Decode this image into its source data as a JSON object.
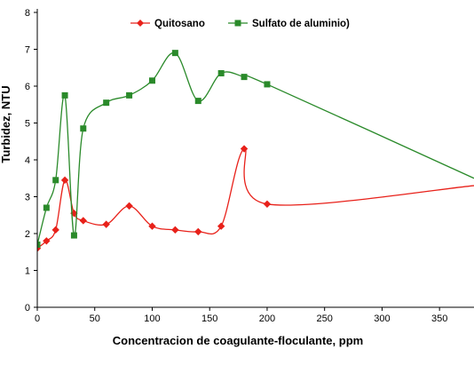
{
  "chart_data": {
    "type": "line",
    "xlabel": "Concentracion de coagulante-floculante, ppm",
    "ylabel": "Turbidez, NTU",
    "xlim": [
      0,
      380
    ],
    "ylim": [
      0,
      8
    ],
    "x_ticks": [
      "0",
      "50",
      "100",
      "150",
      "200",
      "250",
      "300",
      "350"
    ],
    "y_ticks": [
      "0",
      "1",
      "2",
      "3",
      "4",
      "5",
      "6",
      "7",
      "8"
    ],
    "grid": false,
    "legend_position": "top-center",
    "series": [
      {
        "name": "Quitosano",
        "color": "#e8211a",
        "marker": "diamond",
        "x": [
          0,
          8,
          16,
          24,
          32,
          40,
          60,
          80,
          100,
          120,
          140,
          160,
          180,
          200,
          380
        ],
        "y": [
          1.6,
          1.8,
          2.1,
          3.45,
          2.55,
          2.35,
          2.25,
          2.75,
          2.2,
          2.1,
          2.05,
          2.2,
          4.3,
          2.8,
          3.3
        ],
        "markers_shown": 14
      },
      {
        "name": "Sulfato de aluminio)",
        "color": "#2a8a2a",
        "marker": "square",
        "x": [
          0,
          8,
          16,
          24,
          32,
          40,
          60,
          80,
          100,
          120,
          140,
          160,
          180,
          200,
          380
        ],
        "y": [
          1.7,
          2.7,
          3.45,
          5.75,
          1.95,
          4.85,
          5.55,
          5.75,
          6.15,
          6.9,
          5.6,
          6.35,
          6.25,
          6.05,
          3.5
        ],
        "markers_shown": 14
      }
    ]
  }
}
